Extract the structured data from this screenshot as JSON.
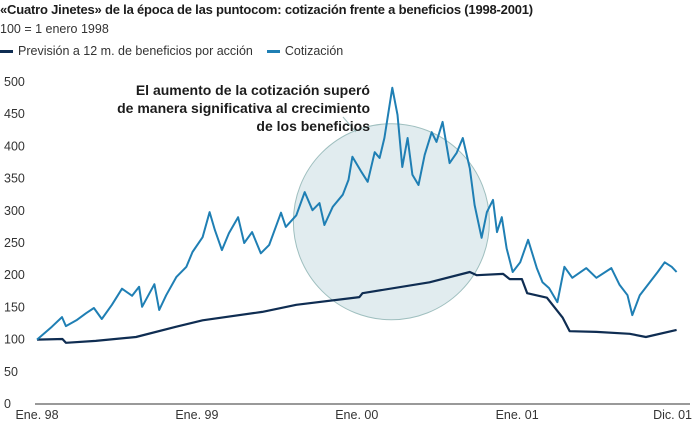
{
  "chart_data": {
    "type": "line",
    "title": "«Cuatro Jinetes» de la época de las puntocom: cotización frente a beneficios (1998-2001)",
    "subtitle": "100 = 1 enero 1998",
    "xlabel": "",
    "ylabel": "",
    "ylim": [
      0,
      500
    ],
    "xlim": [
      "1998-01-01",
      "2001-12-31"
    ],
    "yticks": [
      "0",
      "50",
      "100",
      "150",
      "200",
      "250",
      "300",
      "350",
      "400",
      "450",
      "500"
    ],
    "xticks": [
      {
        "label": "Ene. 98",
        "date": "1998-01-01"
      },
      {
        "label": "Ene. 99",
        "date": "1999-01-01"
      },
      {
        "label": "Ene. 00",
        "date": "2000-01-01"
      },
      {
        "label": "Ene. 01",
        "date": "2001-01-01"
      },
      {
        "label": "Dic. 01",
        "date": "2001-12-01"
      }
    ],
    "grid": false,
    "legend_position": "top-left",
    "annotation": {
      "lines": [
        "El aumento de la cotización superó",
        "de manera significativa al crecimiento",
        "de los beneficios"
      ],
      "highlight_center": {
        "date": "2000-03-20",
        "value": 283
      }
    },
    "series": [
      {
        "name": "Previsión a 12 m. de beneficios por acción",
        "color": "#0f2d52",
        "points": [
          [
            "1998-01-01",
            100
          ],
          [
            "1998-02-28",
            101
          ],
          [
            "1998-03-08",
            95
          ],
          [
            "1998-05-15",
            98
          ],
          [
            "1998-08-15",
            104
          ],
          [
            "1998-11-15",
            120
          ],
          [
            "1999-01-14",
            130
          ],
          [
            "1999-05-30",
            143
          ],
          [
            "1999-08-16",
            154
          ],
          [
            "2000-01-07",
            166
          ],
          [
            "2000-01-14",
            172
          ],
          [
            "2000-06-15",
            189
          ],
          [
            "2000-09-15",
            205
          ],
          [
            "2000-10-01",
            200
          ],
          [
            "2000-11-30",
            202
          ],
          [
            "2000-12-15",
            194
          ],
          [
            "2001-01-12",
            194
          ],
          [
            "2001-01-24",
            172
          ],
          [
            "2001-03-10",
            165
          ],
          [
            "2001-04-15",
            134
          ],
          [
            "2001-05-01",
            113
          ],
          [
            "2001-07-01",
            112
          ],
          [
            "2001-09-15",
            109
          ],
          [
            "2001-10-22",
            104
          ],
          [
            "2001-12-31",
            115
          ]
        ]
      },
      {
        "name": "Cotización",
        "color": "#1f7fb4",
        "points": [
          [
            "1998-01-01",
            100
          ],
          [
            "1998-02-04",
            120
          ],
          [
            "1998-02-27",
            135
          ],
          [
            "1998-03-08",
            121
          ],
          [
            "1998-04-01",
            130
          ],
          [
            "1998-04-23",
            141
          ],
          [
            "1998-05-11",
            149
          ],
          [
            "1998-05-29",
            132
          ],
          [
            "1998-06-21",
            154
          ],
          [
            "1998-07-14",
            179
          ],
          [
            "1998-08-06",
            168
          ],
          [
            "1998-08-22",
            182
          ],
          [
            "1998-08-29",
            151
          ],
          [
            "1998-09-26",
            186
          ],
          [
            "1998-10-07",
            146
          ],
          [
            "1998-10-23",
            169
          ],
          [
            "1998-11-15",
            197
          ],
          [
            "1998-12-08",
            213
          ],
          [
            "1998-12-22",
            236
          ],
          [
            "1999-01-14",
            259
          ],
          [
            "1999-01-30",
            298
          ],
          [
            "1999-02-11",
            270
          ],
          [
            "1999-02-27",
            239
          ],
          [
            "1999-03-15",
            265
          ],
          [
            "1999-04-05",
            290
          ],
          [
            "1999-04-19",
            250
          ],
          [
            "1999-05-07",
            267
          ],
          [
            "1999-05-27",
            234
          ],
          [
            "1999-06-15",
            247
          ],
          [
            "1999-07-12",
            297
          ],
          [
            "1999-07-23",
            275
          ],
          [
            "1999-08-16",
            293
          ],
          [
            "1999-09-04",
            329
          ],
          [
            "1999-09-22",
            301
          ],
          [
            "1999-10-08",
            312
          ],
          [
            "1999-10-19",
            278
          ],
          [
            "1999-11-07",
            306
          ],
          [
            "1999-11-30",
            325
          ],
          [
            "1999-12-13",
            348
          ],
          [
            "1999-12-22",
            384
          ],
          [
            "2000-01-12",
            360
          ],
          [
            "2000-01-26",
            345
          ],
          [
            "2000-02-11",
            391
          ],
          [
            "2000-02-22",
            382
          ],
          [
            "2000-03-04",
            413
          ],
          [
            "2000-03-22",
            491
          ],
          [
            "2000-04-03",
            449
          ],
          [
            "2000-04-14",
            368
          ],
          [
            "2000-04-26",
            413
          ],
          [
            "2000-05-07",
            356
          ],
          [
            "2000-05-21",
            340
          ],
          [
            "2000-06-04",
            387
          ],
          [
            "2000-06-20",
            422
          ],
          [
            "2000-07-01",
            407
          ],
          [
            "2000-07-15",
            438
          ],
          [
            "2000-07-31",
            374
          ],
          [
            "2000-08-16",
            390
          ],
          [
            "2000-08-30",
            413
          ],
          [
            "2000-09-15",
            366
          ],
          [
            "2000-09-26",
            309
          ],
          [
            "2000-10-12",
            258
          ],
          [
            "2000-10-24",
            298
          ],
          [
            "2000-11-07",
            317
          ],
          [
            "2000-11-16",
            267
          ],
          [
            "2000-11-27",
            290
          ],
          [
            "2000-12-08",
            242
          ],
          [
            "2000-12-22",
            205
          ],
          [
            "2001-01-08",
            220
          ],
          [
            "2001-01-26",
            255
          ],
          [
            "2001-02-15",
            211
          ],
          [
            "2001-02-28",
            189
          ],
          [
            "2001-03-15",
            180
          ],
          [
            "2001-04-03",
            158
          ],
          [
            "2001-04-19",
            213
          ],
          [
            "2001-05-07",
            196
          ],
          [
            "2001-06-08",
            211
          ],
          [
            "2001-07-01",
            196
          ],
          [
            "2001-08-04",
            211
          ],
          [
            "2001-08-23",
            185
          ],
          [
            "2001-09-10",
            169
          ],
          [
            "2001-09-21",
            138
          ],
          [
            "2001-10-08",
            169
          ],
          [
            "2001-10-31",
            189
          ],
          [
            "2001-11-18",
            205
          ],
          [
            "2001-12-04",
            220
          ],
          [
            "2001-12-20",
            213
          ],
          [
            "2001-12-31",
            205
          ]
        ]
      }
    ]
  }
}
